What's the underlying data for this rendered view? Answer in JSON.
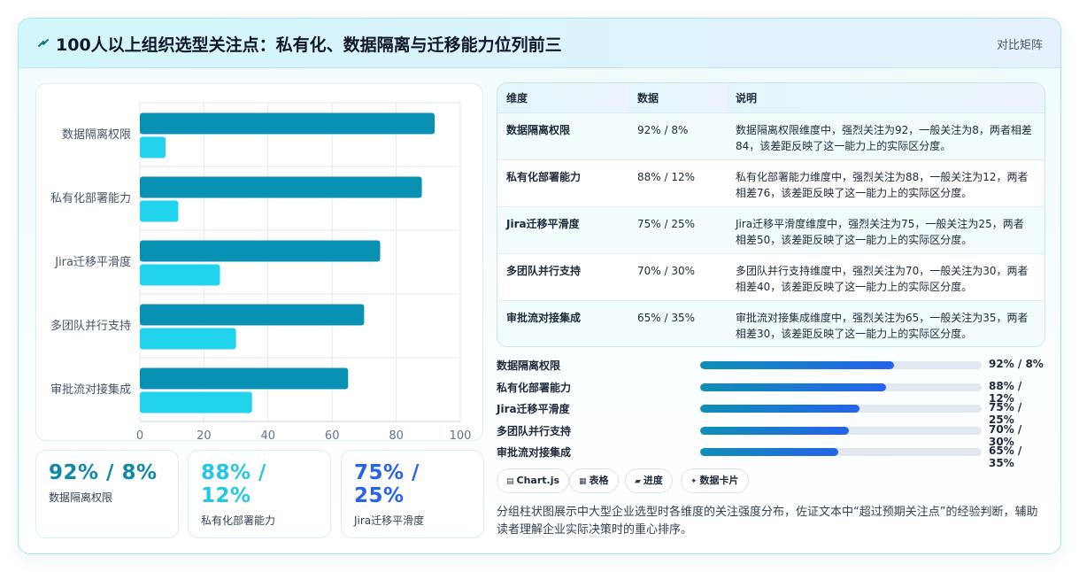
{
  "header": {
    "title": "100人以上组织选型关注点：私有化、数据隔离与迁移能力位列前三",
    "mode_label": "对比矩阵",
    "icon": "bolt-icon"
  },
  "chart_data": {
    "type": "bar",
    "orientation": "horizontal",
    "categories": [
      "数据隔离权限",
      "私有化部署能力",
      "Jira迁移平滑度",
      "多团队并行支持",
      "审批流对接集成"
    ],
    "series": [
      {
        "values": [
          92,
          88,
          75,
          70,
          65
        ],
        "color": "#0891b2"
      },
      {
        "values": [
          8,
          12,
          25,
          30,
          35
        ],
        "color": "#22d3ee"
      }
    ],
    "xlim": [
      0,
      100
    ],
    "xticks": [
      0,
      20,
      40,
      60,
      80,
      100
    ],
    "grid": true
  },
  "stats": [
    {
      "value": "92% / 8%",
      "label": "数据隔离权限",
      "color": "#0e8aa8"
    },
    {
      "value": "88% / 12%",
      "label": "私有化部署能力",
      "color": "#22c7e3"
    },
    {
      "value": "75% / 25%",
      "label": "Jira迁移平滑度",
      "color": "#2563eb"
    }
  ],
  "table": {
    "headers": [
      "维度",
      "数据",
      "说明"
    ],
    "rows": [
      [
        "数据隔离权限",
        "92% / 8%",
        "数据隔离权限维度中，强烈关注为92，一般关注为8，两者相差84，该差距反映了这一能力上的实际区分度。"
      ],
      [
        "私有化部署能力",
        "88% / 12%",
        "私有化部署能力维度中，强烈关注为88，一般关注为12，两者相差76，该差距反映了这一能力上的实际区分度。"
      ],
      [
        "Jira迁移平滑度",
        "75% / 25%",
        "Jira迁移平滑度维度中，强烈关注为75，一般关注为25，两者相差50，该差距反映了这一能力上的实际区分度。"
      ],
      [
        "多团队并行支持",
        "70% / 30%",
        "多团队并行支持维度中，强烈关注为70，一般关注为30，两者相差40，该差距反映了这一能力上的实际区分度。"
      ],
      [
        "审批流对接集成",
        "65% / 35%",
        "审批流对接集成维度中，强烈关注为65，一般关注为35，两者相差30，该差距反映了这一能力上的实际区分度。"
      ]
    ]
  },
  "progress": [
    {
      "label": "数据隔离权限",
      "value_text": "92% / 8%",
      "fraction": 0.69
    },
    {
      "label": "私有化部署能力",
      "value_text": "88% / 12%",
      "fraction": 0.66
    },
    {
      "label": "Jira迁移平滑度",
      "value_text": "75% / 25%",
      "fraction": 0.565
    },
    {
      "label": "多团队并行支持",
      "value_text": "70% / 30%",
      "fraction": 0.528
    },
    {
      "label": "审批流对接集成",
      "value_text": "65% / 35%",
      "fraction": 0.49
    }
  ],
  "chips": [
    {
      "icon": "chart-icon",
      "glyph": "▤",
      "label": "Chart.js"
    },
    {
      "icon": "table-icon",
      "glyph": "▦",
      "label": "表格"
    },
    {
      "icon": "progress-icon",
      "glyph": "▰",
      "label": "进度"
    },
    {
      "icon": "sparkle-icon",
      "glyph": "✦",
      "label": "数据卡片"
    }
  ],
  "description": "分组柱状图展示中大型企业选型时各维度的关注强度分布，佐证文本中“超过预期关注点”的经验判断，辅助读者理解企业实际决策时的重心排序。"
}
